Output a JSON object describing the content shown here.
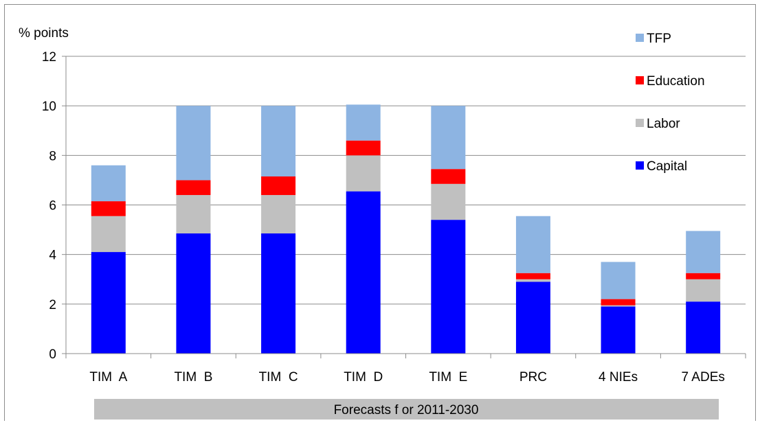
{
  "chart_data": {
    "type": "bar",
    "stacked": true,
    "ylabel": "% points",
    "ylim": [
      0,
      12
    ],
    "yticks": [
      0,
      2,
      4,
      6,
      8,
      10,
      12
    ],
    "grid": true,
    "legend_position": "top-right",
    "categories": [
      "TIM  A",
      "TIM  B",
      "TIM  C",
      "TIM  D",
      "TIM  E",
      "PRC",
      "4 NIEs",
      "7 ADEs"
    ],
    "series": [
      {
        "name": "Capital",
        "color": "#0000ff",
        "values": [
          4.1,
          4.85,
          4.85,
          6.55,
          5.4,
          2.9,
          1.9,
          2.1
        ]
      },
      {
        "name": "Labor",
        "color": "#c0c0c0",
        "values": [
          1.45,
          1.55,
          1.55,
          1.45,
          1.45,
          0.1,
          0.05,
          0.9
        ]
      },
      {
        "name": "Education",
        "color": "#ff0000",
        "values": [
          0.6,
          0.6,
          0.75,
          0.6,
          0.6,
          0.25,
          0.25,
          0.25
        ]
      },
      {
        "name": "TFP",
        "color": "#8db4e2",
        "values": [
          1.45,
          3.0,
          2.85,
          1.45,
          2.55,
          2.3,
          1.5,
          1.7
        ]
      }
    ],
    "band_label": "Forecasts f or 2011-2030",
    "band_color": "#c0c0c0"
  }
}
